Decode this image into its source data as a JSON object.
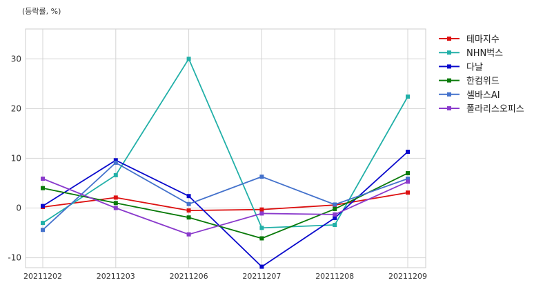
{
  "chart_data": {
    "type": "line",
    "unit_label": "(등락률, %)",
    "categories": [
      "20211202",
      "20211203",
      "20211206",
      "20211207",
      "20211208",
      "20211209"
    ],
    "ylim": [
      -12,
      36
    ],
    "yticks": [
      -10,
      0,
      10,
      20,
      30
    ],
    "grid": true,
    "legend_position": "right",
    "series": [
      {
        "name": "테마지수",
        "color": "#dd1111",
        "values": [
          0.2,
          2.1,
          -0.5,
          -0.3,
          0.6,
          3.1
        ]
      },
      {
        "name": "NHN벅스",
        "color": "#22b0a8",
        "values": [
          -3.0,
          6.6,
          30.0,
          -4.0,
          -3.4,
          22.4
        ]
      },
      {
        "name": "다날",
        "color": "#0a0acc",
        "values": [
          0.4,
          9.6,
          2.4,
          -11.8,
          -2.0,
          11.3
        ]
      },
      {
        "name": "한컴위드",
        "color": "#0a7a0a",
        "values": [
          4.0,
          1.0,
          -1.9,
          -6.1,
          -0.2,
          7.0
        ]
      },
      {
        "name": "셀바스AI",
        "color": "#4472cc",
        "values": [
          -4.4,
          9.1,
          0.8,
          6.3,
          0.7,
          5.9
        ]
      },
      {
        "name": "폴라리스오피스",
        "color": "#8a3acc",
        "values": [
          5.9,
          0.0,
          -5.3,
          -1.1,
          -1.3,
          5.3
        ]
      }
    ]
  }
}
